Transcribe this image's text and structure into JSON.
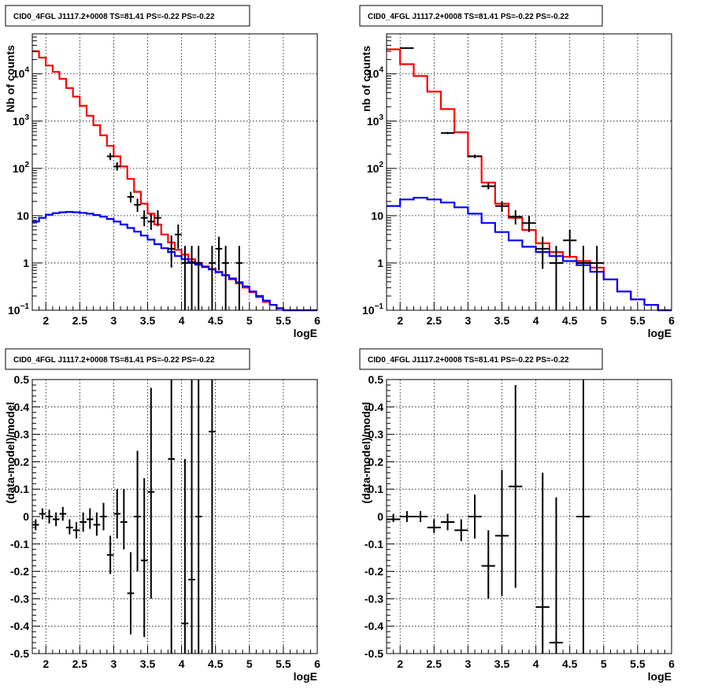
{
  "chart_data": [
    {
      "type": "line",
      "title": "CID0_4FGL J1117.2+0008 TS=81.41 PS=-0.22 PS=-0.22",
      "xlabel": "logE",
      "ylabel": "Nb of counts",
      "xlim": [
        1.8,
        6.0
      ],
      "ylim": [
        0.1,
        70000
      ],
      "yscale": "log",
      "grid": true,
      "x_ticks": [
        "2",
        "2.5",
        "3",
        "3.5",
        "4",
        "4.5",
        "5",
        "5.5",
        "6"
      ],
      "y_ticks": [
        {
          "v": 0.1,
          "mant": "10",
          "exp": "−1"
        },
        {
          "v": 1,
          "mant": "1",
          "exp": ""
        },
        {
          "v": 10,
          "mant": "10",
          "exp": ""
        },
        {
          "v": 100,
          "mant": "10",
          "exp": "2"
        },
        {
          "v": 1000,
          "mant": "10",
          "exp": "3"
        },
        {
          "v": 10000,
          "mant": "10",
          "exp": "4"
        }
      ],
      "bin_edges": [
        1.8,
        1.9,
        2.0,
        2.1,
        2.2,
        2.3,
        2.4,
        2.5,
        2.6,
        2.7,
        2.8,
        2.9,
        3.0,
        3.1,
        3.2,
        3.3,
        3.4,
        3.5,
        3.6,
        3.7,
        3.8,
        3.9,
        4.0,
        4.1,
        4.2,
        4.3,
        4.4,
        4.5,
        4.6,
        4.7,
        4.8,
        4.9,
        5.0,
        5.1,
        5.2,
        5.3,
        5.4,
        5.5,
        5.6,
        5.7,
        5.8,
        5.9,
        6.0
      ],
      "series": [
        {
          "color": "#ff0000",
          "values": [
            30000,
            22000,
            15000,
            11000,
            7800,
            5000,
            3300,
            2100,
            1300,
            820,
            500,
            300,
            180,
            110,
            60,
            32,
            18,
            11,
            6.5,
            4,
            2.7,
            1.9,
            1.5,
            1.2,
            1.0,
            0.85,
            0.75,
            0.65,
            0.55,
            0.45,
            0.37,
            0.3,
            0.24,
            0.19,
            0.15,
            0.13,
            0.11,
            0.1,
            0.1,
            0.1,
            0.1,
            0.1
          ]
        },
        {
          "color": "#0000ff",
          "values": [
            7.5,
            9,
            10.5,
            11.3,
            11.8,
            12,
            11.8,
            11.5,
            11,
            10.3,
            9.5,
            8.5,
            7.5,
            6.5,
            5.5,
            4.6,
            3.8,
            3.1,
            2.5,
            2.05,
            1.7,
            1.4,
            1.2,
            1.05,
            0.92,
            0.82,
            0.73,
            0.64,
            0.55,
            0.47,
            0.39,
            0.32,
            0.25,
            0.2,
            0.16,
            0.13,
            0.11,
            0.1,
            0.1,
            0.1,
            0.1,
            0.1
          ]
        }
      ],
      "data_points": [
        {
          "x": 2.95,
          "y": 180,
          "lo": 150,
          "hi": 210
        },
        {
          "x": 3.05,
          "y": 110,
          "lo": 90,
          "hi": 135
        },
        {
          "x": 3.25,
          "y": 25,
          "lo": 19,
          "hi": 32
        },
        {
          "x": 3.35,
          "y": 17,
          "lo": 12,
          "hi": 23
        },
        {
          "x": 3.45,
          "y": 9,
          "lo": 6,
          "hi": 13
        },
        {
          "x": 3.55,
          "y": 7.5,
          "lo": 5,
          "hi": 11
        },
        {
          "x": 3.65,
          "y": 9,
          "lo": 6,
          "hi": 13
        },
        {
          "x": 3.85,
          "y": 2,
          "lo": 0.8,
          "hi": 3.8
        },
        {
          "x": 3.95,
          "y": 4,
          "lo": 2,
          "hi": 6.5
        },
        {
          "x": 4.05,
          "y": 1,
          "lo": 0.1,
          "hi": 2.3
        },
        {
          "x": 4.15,
          "y": 1,
          "lo": 0.1,
          "hi": 2.3
        },
        {
          "x": 4.25,
          "y": 1,
          "lo": 0.1,
          "hi": 2.3
        },
        {
          "x": 4.45,
          "y": 1,
          "lo": 0.1,
          "hi": 2.3
        },
        {
          "x": 4.55,
          "y": 2,
          "lo": 0.7,
          "hi": 3.6
        },
        {
          "x": 4.65,
          "y": 1,
          "lo": 0.1,
          "hi": 2.3
        },
        {
          "x": 4.85,
          "y": 1,
          "lo": 0.1,
          "hi": 2.3
        }
      ],
      "data_half_width": 0.05
    },
    {
      "type": "line",
      "title": "CID0_4FGL J1117.2+0008 TS=81.41 PS=-0.22 PS=-0.22",
      "xlabel": "logE",
      "ylabel": "nb of counts",
      "xlim": [
        1.8,
        6.0
      ],
      "ylim": [
        0.1,
        70000
      ],
      "yscale": "log",
      "grid": true,
      "x_ticks": [
        "2",
        "2.5",
        "3",
        "3.5",
        "4",
        "4.5",
        "5",
        "5.5",
        "6"
      ],
      "y_ticks": [
        {
          "v": 0.1,
          "mant": "10",
          "exp": "−1"
        },
        {
          "v": 1,
          "mant": "1",
          "exp": ""
        },
        {
          "v": 10,
          "mant": "10",
          "exp": ""
        },
        {
          "v": 100,
          "mant": "10",
          "exp": "2"
        },
        {
          "v": 1000,
          "mant": "10",
          "exp": "3"
        },
        {
          "v": 10000,
          "mant": "10",
          "exp": "4"
        }
      ],
      "bin_edges": [
        1.8,
        2.0,
        2.2,
        2.4,
        2.6,
        2.8,
        3.0,
        3.2,
        3.4,
        3.6,
        3.8,
        4.0,
        4.2,
        4.4,
        4.6,
        4.8,
        5.0,
        5.2,
        5.4,
        5.6,
        5.8,
        6.0
      ],
      "series": [
        {
          "color": "#ff0000",
          "values": [
            33000,
            16000,
            9000,
            4200,
            1800,
            580,
            180,
            50,
            18,
            9,
            5,
            2.6,
            1.7,
            1.35,
            1.1,
            0.8,
            0.45,
            0.25,
            0.17,
            0.13,
            0.1
          ]
        },
        {
          "color": "#0000ff",
          "values": [
            16,
            22,
            24,
            22,
            19,
            15,
            11,
            7,
            4.5,
            3,
            2.2,
            1.7,
            1.4,
            1.1,
            0.9,
            0.65,
            0.45,
            0.25,
            0.17,
            0.13,
            0.1
          ]
        }
      ],
      "data_points": [
        {
          "x": 2.1,
          "y": 35000,
          "lo": 34000,
          "hi": 36000
        },
        {
          "x": 2.7,
          "y": 560,
          "lo": 530,
          "hi": 590
        },
        {
          "x": 3.1,
          "y": 180,
          "lo": 165,
          "hi": 195
        },
        {
          "x": 3.3,
          "y": 42,
          "lo": 36,
          "hi": 49
        },
        {
          "x": 3.5,
          "y": 16,
          "lo": 12,
          "hi": 20
        },
        {
          "x": 3.7,
          "y": 9.5,
          "lo": 6.5,
          "hi": 13
        },
        {
          "x": 3.9,
          "y": 7,
          "lo": 4.5,
          "hi": 10
        },
        {
          "x": 4.1,
          "y": 2,
          "lo": 0.75,
          "hi": 3.6
        },
        {
          "x": 4.3,
          "y": 1,
          "lo": 0.1,
          "hi": 2.3
        },
        {
          "x": 4.5,
          "y": 3,
          "lo": 1.4,
          "hi": 5
        },
        {
          "x": 4.7,
          "y": 1,
          "lo": 0.1,
          "hi": 2.3
        },
        {
          "x": 4.9,
          "y": 1,
          "lo": 0.1,
          "hi": 2.3
        }
      ],
      "data_half_width": 0.1
    },
    {
      "type": "scatter",
      "title": "CID0_4FGL J1117.2+0008 TS=81.41 PS=-0.22 PS=-0.22",
      "xlabel": "logE",
      "ylabel": "(data-model)/model",
      "xlim": [
        1.8,
        6.0
      ],
      "ylim": [
        -0.5,
        0.5
      ],
      "yscale": "linear",
      "grid": true,
      "x_ticks": [
        "2",
        "2.5",
        "3",
        "3.5",
        "4",
        "4.5",
        "5",
        "5.5",
        "6"
      ],
      "y_ticks": [
        "-0.5",
        "-0.4",
        "-0.3",
        "-0.2",
        "-0.1",
        "0",
        "0.1",
        "0.2",
        "0.3",
        "0.4",
        "0.5"
      ],
      "data_points": [
        {
          "x": 1.85,
          "y": -0.03,
          "lo": -0.05,
          "hi": -0.01
        },
        {
          "x": 1.95,
          "y": 0.01,
          "lo": -0.01,
          "hi": 0.03
        },
        {
          "x": 2.05,
          "y": 0.0,
          "lo": -0.025,
          "hi": 0.025
        },
        {
          "x": 2.15,
          "y": -0.01,
          "lo": -0.035,
          "hi": 0.015
        },
        {
          "x": 2.25,
          "y": 0.01,
          "lo": -0.015,
          "hi": 0.035
        },
        {
          "x": 2.35,
          "y": -0.04,
          "lo": -0.065,
          "hi": -0.01
        },
        {
          "x": 2.45,
          "y": -0.05,
          "lo": -0.08,
          "hi": -0.02
        },
        {
          "x": 2.55,
          "y": -0.02,
          "lo": -0.055,
          "hi": 0.015
        },
        {
          "x": 2.65,
          "y": -0.01,
          "lo": -0.045,
          "hi": 0.03
        },
        {
          "x": 2.75,
          "y": -0.03,
          "lo": -0.07,
          "hi": 0.015
        },
        {
          "x": 2.85,
          "y": 0.0,
          "lo": -0.05,
          "hi": 0.05
        },
        {
          "x": 2.95,
          "y": -0.14,
          "lo": -0.21,
          "hi": -0.07
        },
        {
          "x": 3.05,
          "y": 0.01,
          "lo": -0.08,
          "hi": 0.1
        },
        {
          "x": 3.15,
          "y": -0.02,
          "lo": -0.12,
          "hi": 0.1
        },
        {
          "x": 3.25,
          "y": -0.28,
          "lo": -0.43,
          "hi": -0.13
        },
        {
          "x": 3.35,
          "y": 0.0,
          "lo": -0.2,
          "hi": 0.24
        },
        {
          "x": 3.45,
          "y": -0.16,
          "lo": -0.44,
          "hi": 0.14
        },
        {
          "x": 3.55,
          "y": 0.09,
          "lo": -0.3,
          "hi": 0.47
        },
        {
          "x": 3.85,
          "y": 0.21,
          "lo": -0.5,
          "hi": 0.5
        },
        {
          "x": 4.05,
          "y": -0.39,
          "lo": -0.5,
          "hi": 0.21
        },
        {
          "x": 4.15,
          "y": -0.23,
          "lo": -0.5,
          "hi": 0.5
        },
        {
          "x": 4.25,
          "y": 0.0,
          "lo": -0.5,
          "hi": 0.5
        },
        {
          "x": 4.45,
          "y": 0.31,
          "lo": -0.5,
          "hi": 0.5
        }
      ],
      "data_half_width": 0.05
    },
    {
      "type": "scatter",
      "title": "CID0_4FGL J1117.2+0008 TS=81.41 PS=-0.22 PS=-0.22",
      "xlabel": "logE",
      "ylabel": "(data-model)/model",
      "xlim": [
        1.8,
        6.0
      ],
      "ylim": [
        -0.5,
        0.5
      ],
      "yscale": "linear",
      "grid": true,
      "x_ticks": [
        "2",
        "2.5",
        "3",
        "3.5",
        "4",
        "4.5",
        "5",
        "5.5",
        "6"
      ],
      "y_ticks": [
        "-0.5",
        "-0.4",
        "-0.3",
        "-0.2",
        "-0.1",
        "0",
        "0.1",
        "0.2",
        "0.3",
        "0.4",
        "0.5"
      ],
      "data_points": [
        {
          "x": 1.9,
          "y": -0.01,
          "lo": -0.02,
          "hi": 0.01
        },
        {
          "x": 2.1,
          "y": 0.0,
          "lo": -0.02,
          "hi": 0.02
        },
        {
          "x": 2.3,
          "y": 0.0,
          "lo": -0.02,
          "hi": 0.02
        },
        {
          "x": 2.5,
          "y": -0.04,
          "lo": -0.06,
          "hi": -0.01
        },
        {
          "x": 2.7,
          "y": -0.02,
          "lo": -0.05,
          "hi": 0.01
        },
        {
          "x": 2.9,
          "y": -0.05,
          "lo": -0.09,
          "hi": -0.01
        },
        {
          "x": 3.1,
          "y": 0.0,
          "lo": -0.08,
          "hi": 0.08
        },
        {
          "x": 3.3,
          "y": -0.18,
          "lo": -0.3,
          "hi": -0.05
        },
        {
          "x": 3.5,
          "y": -0.07,
          "lo": -0.29,
          "hi": 0.17
        },
        {
          "x": 3.7,
          "y": 0.11,
          "lo": -0.26,
          "hi": 0.48
        },
        {
          "x": 4.1,
          "y": -0.33,
          "lo": -0.5,
          "hi": 0.16
        },
        {
          "x": 4.3,
          "y": -0.46,
          "lo": -0.5,
          "hi": 0.07
        },
        {
          "x": 4.7,
          "y": 0.0,
          "lo": -0.5,
          "hi": 0.5
        }
      ],
      "data_half_width": 0.1
    }
  ]
}
